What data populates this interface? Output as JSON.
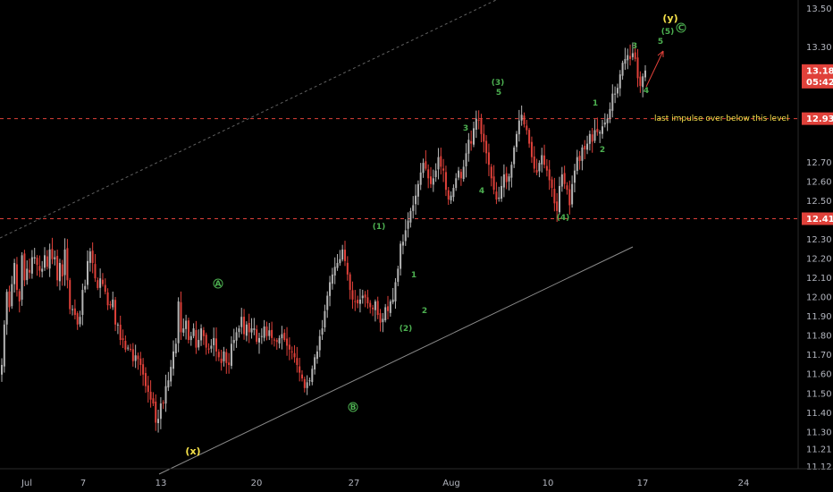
{
  "chart_data": {
    "type": "candlestick",
    "x_ticks": [
      "Jul",
      "7",
      "13",
      "20",
      "27",
      "Aug",
      "10",
      "17",
      "24"
    ],
    "y_ticks": [
      "13.50",
      "13.30",
      "13.18",
      "12.93",
      "12.70",
      "12.60",
      "12.50",
      "12.41",
      "12.30",
      "12.20",
      "12.10",
      "12.00",
      "11.90",
      "11.80",
      "11.70",
      "11.60",
      "11.50",
      "11.40",
      "11.30",
      "11.21",
      "11.12"
    ],
    "ylim": [
      11.1,
      13.55
    ],
    "price_badge": {
      "value": "13.18",
      "countdown": "05:42"
    },
    "level_lines": [
      {
        "value": 12.93,
        "label": "12.93"
      },
      {
        "value": 12.41,
        "label": "12.41"
      }
    ],
    "annotation": "last impulse over below this level",
    "series": [
      {
        "values": [
          11.65,
          11.86,
          12.03,
          11.95,
          12.07,
          12.18,
          12.04,
          11.98,
          12.22,
          12.09,
          12.15,
          12.13,
          12.21,
          12.21,
          12.17,
          12.14,
          12.15,
          12.22,
          12.16,
          12.25,
          12.2,
          12.21,
          12.09,
          12.18,
          12.11,
          12.25,
          12.09,
          11.94,
          11.94,
          11.91,
          11.86,
          11.9,
          12.04,
          12.06,
          12.19,
          12.24,
          12.18,
          12.1,
          12.05,
          12.1,
          12.07,
          12.03,
          11.96,
          11.96,
          11.99,
          11.86,
          11.86,
          11.78,
          11.78,
          11.73,
          11.74,
          11.73,
          11.67,
          11.7,
          11.68,
          11.65,
          11.6,
          11.54,
          11.51,
          11.47,
          11.45,
          11.35,
          11.37,
          11.45,
          11.45,
          11.54,
          11.57,
          11.64,
          11.72,
          11.76,
          11.98,
          11.82,
          11.84,
          11.88,
          11.78,
          11.8,
          11.84,
          11.74,
          11.78,
          11.84,
          11.8,
          11.74,
          11.73,
          11.75,
          11.79,
          11.72,
          11.69,
          11.66,
          11.72,
          11.66,
          11.65,
          11.76,
          11.78,
          11.82,
          11.84,
          11.9,
          11.81,
          11.86,
          11.82,
          11.84,
          11.84,
          11.77,
          11.79,
          11.8,
          11.85,
          11.8,
          11.83,
          11.79,
          11.78,
          11.77,
          11.79,
          11.81,
          11.78,
          11.75,
          11.73,
          11.72,
          11.69,
          11.65,
          11.61,
          11.58,
          11.53,
          11.56,
          11.57,
          11.63,
          11.69,
          11.72,
          11.8,
          11.84,
          11.93,
          12.01,
          12.08,
          12.12,
          12.16,
          12.18,
          12.2,
          12.25,
          12.19,
          12.12,
          12.04,
          11.99,
          11.98,
          11.97,
          11.99,
          12.01,
          12.0,
          11.97,
          11.95,
          11.94,
          11.98,
          11.91,
          11.87,
          11.89,
          11.95,
          11.93,
          11.98,
          11.99,
          12.08,
          12.15,
          12.28,
          12.29,
          12.35,
          12.4,
          12.45,
          12.48,
          12.53,
          12.59,
          12.65,
          12.7,
          12.67,
          12.62,
          12.59,
          12.62,
          12.66,
          12.73,
          12.68,
          12.66,
          12.56,
          12.51,
          12.53,
          12.57,
          12.62,
          12.66,
          12.62,
          12.68,
          12.75,
          12.82,
          12.8,
          12.88,
          12.93,
          12.92,
          12.85,
          12.81,
          12.75,
          12.69,
          12.62,
          12.56,
          12.51,
          12.52,
          12.58,
          12.64,
          12.6,
          12.63,
          12.69,
          12.78,
          12.85,
          12.92,
          12.95,
          12.9,
          12.87,
          12.8,
          12.73,
          12.67,
          12.65,
          12.7,
          12.74,
          12.69,
          12.66,
          12.61,
          12.57,
          12.49,
          12.45,
          12.58,
          12.64,
          12.59,
          12.56,
          12.48,
          12.59,
          12.66,
          12.73,
          12.71,
          12.78,
          12.77,
          12.8,
          12.85,
          12.81,
          12.87,
          12.86,
          12.86,
          12.89,
          12.91,
          12.93,
          12.98,
          13.06,
          13.06,
          13.09,
          13.16,
          13.22,
          13.24,
          13.26,
          13.24,
          13.27,
          13.24,
          13.14,
          13.1,
          13.15,
          13.18
        ]
      }
    ],
    "wave_labels": [
      {
        "text": "(x)",
        "style": "yellow"
      },
      {
        "text": "(y)",
        "style": "yellow"
      },
      {
        "text": "A",
        "style": "circle"
      },
      {
        "text": "B",
        "style": "circle"
      },
      {
        "text": "C",
        "style": "circle"
      },
      {
        "text": "(1)",
        "style": "green"
      },
      {
        "text": "(2)",
        "style": "green"
      },
      {
        "text": "1",
        "style": "green"
      },
      {
        "text": "2",
        "style": "green"
      },
      {
        "text": "3",
        "style": "green"
      },
      {
        "text": "4",
        "style": "green"
      },
      {
        "text": "(3)",
        "style": "green"
      },
      {
        "text": "5",
        "style": "green"
      },
      {
        "text": "(4)",
        "style": "green"
      },
      {
        "text": "1",
        "style": "green"
      },
      {
        "text": "2",
        "style": "green"
      },
      {
        "text": "3",
        "style": "green"
      },
      {
        "text": "4",
        "style": "green"
      },
      {
        "text": "5",
        "style": "green"
      },
      {
        "text": "(5)",
        "style": "green"
      }
    ],
    "colors": {
      "background": "#000000",
      "up_candle": "#b4b4b4",
      "down_candle": "#e0413a",
      "level_line": "#e0413a",
      "price_badge": "#e0413a",
      "wave_label": "#4caf50",
      "wave_major": "#f5e14a",
      "trend_line": "#8a8a8a"
    }
  }
}
